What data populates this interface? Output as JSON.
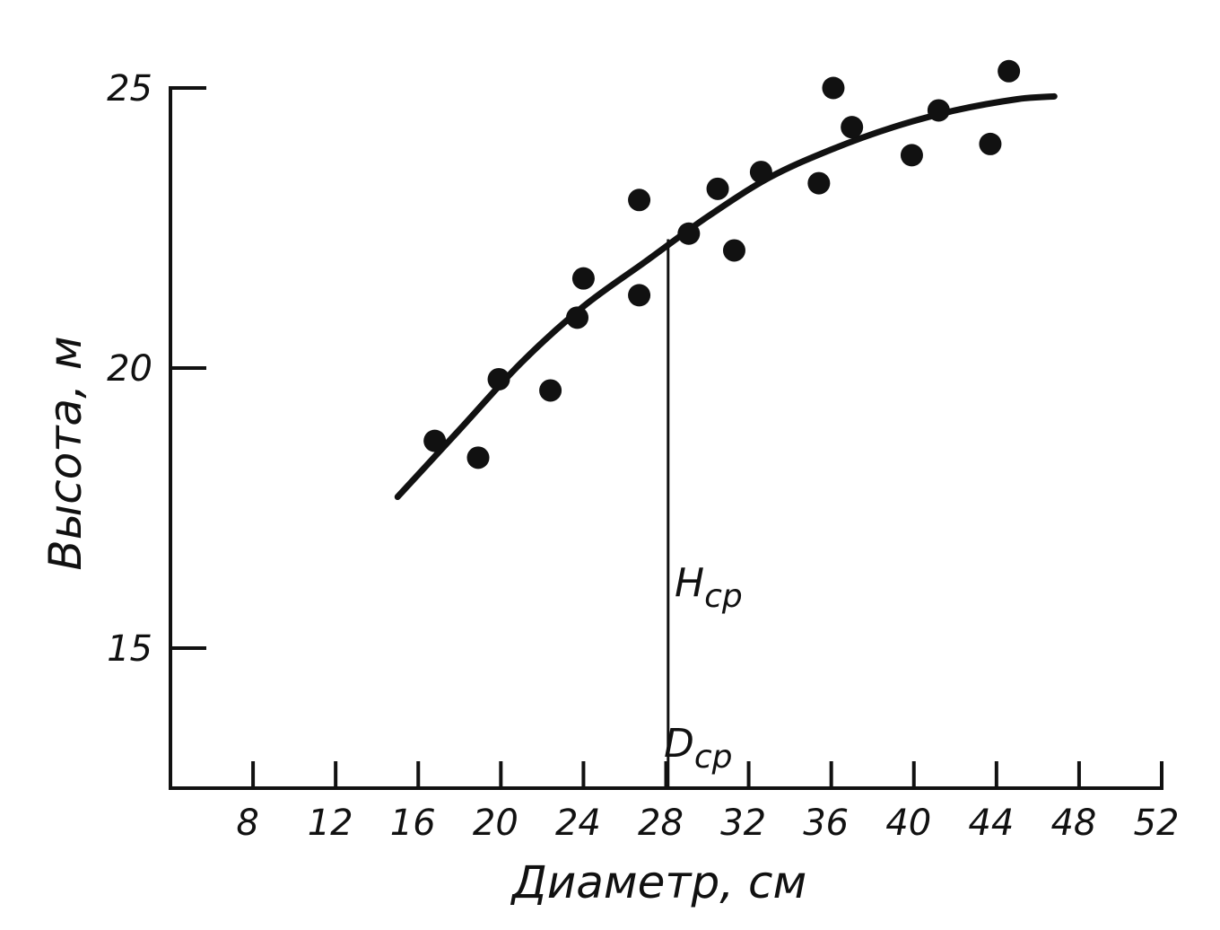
{
  "chart_data": {
    "type": "scatter",
    "xlabel": "Диаметр, см",
    "ylabel": "Высота, м",
    "xlim": [
      4,
      52
    ],
    "ylim": [
      12.5,
      25
    ],
    "x_ticks": [
      "8",
      "12",
      "16",
      "20",
      "24",
      "28",
      "32",
      "36",
      "40",
      "44",
      "48",
      "52"
    ],
    "y_ticks": [
      "15",
      "20",
      "25"
    ],
    "grid": false,
    "series": [
      {
        "type": "scatter",
        "x": [
          16.8,
          18.9,
          19.9,
          22.4,
          23.7,
          24.0,
          26.7,
          26.7,
          29.1,
          30.5,
          31.3,
          32.6,
          35.4,
          36.1,
          37.0,
          39.9,
          41.2,
          43.7,
          44.6
        ],
        "y": [
          18.7,
          18.4,
          19.8,
          19.6,
          20.9,
          21.6,
          21.3,
          23.0,
          22.4,
          23.2,
          22.1,
          23.5,
          23.3,
          25.0,
          24.3,
          23.8,
          24.6,
          24.0,
          25.3
        ]
      },
      {
        "type": "line",
        "x": [
          15.0,
          18.0,
          21.0,
          24.0,
          27.0,
          30.0,
          33.0,
          36.0,
          39.0,
          42.0,
          45.0,
          46.8
        ],
        "y": [
          17.7,
          18.9,
          20.1,
          21.1,
          21.9,
          22.7,
          23.4,
          23.9,
          24.3,
          24.6,
          24.8,
          24.85
        ]
      }
    ],
    "annotations": [
      {
        "text": "H",
        "sub": "ср"
      },
      {
        "text": "D",
        "sub": "ср"
      }
    ],
    "reference_line_x": 28.1,
    "reference_line_y_top": 22.3
  }
}
